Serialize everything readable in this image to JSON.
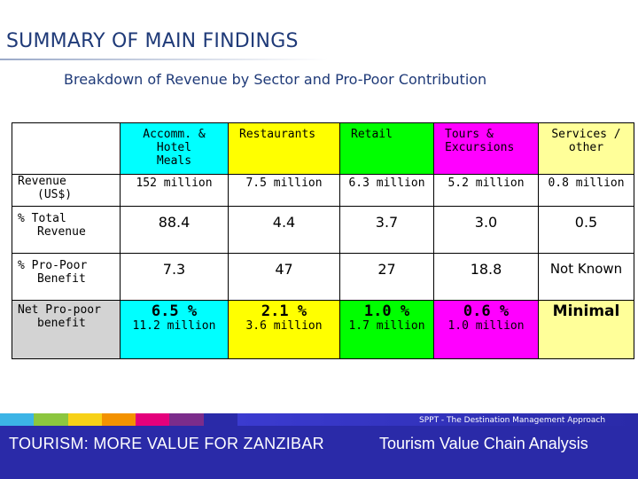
{
  "title": "SUMMARY OF MAIN FINDINGS",
  "subtitle": "Breakdown of Revenue by Sector and Pro-Poor Contribution",
  "table": {
    "headers": [
      {
        "label": "Accomm. &\nHotel\nMeals",
        "color": "#00ffff"
      },
      {
        "label": "Restaurants",
        "color": "#ffff00"
      },
      {
        "label": "Retail",
        "color": "#00ff00"
      },
      {
        "label": "Tours &\nExcursions",
        "color": "#ff00ff"
      },
      {
        "label": "Services /\nother",
        "color": "#ffff99"
      }
    ],
    "rows": [
      {
        "label_1": "Revenue",
        "label_2": "(US$)",
        "values": [
          "152 million",
          "7.5 million",
          "6.3 million",
          "5.2 million",
          "0.8 million"
        ]
      },
      {
        "label_1": "% Total",
        "label_2": "Revenue",
        "values": [
          "88.4",
          "4.4",
          "3.7",
          "3.0",
          "0.5"
        ]
      },
      {
        "label_1": "% Pro-Poor",
        "label_2": "Benefit",
        "values": [
          "7.3",
          "47",
          "27",
          "18.8",
          "Not Known"
        ]
      },
      {
        "label_1": "Net Pro-poor",
        "label_2": "benefit",
        "values": [
          "6.5 %",
          "2.1 %",
          "1.0 %",
          "0.6 %",
          "Minimal"
        ],
        "sub_values": [
          "11.2 million",
          "3.6 million",
          "1.7 million",
          "1.0 million",
          ""
        ]
      }
    ]
  },
  "footer": {
    "source": "SPPT - The Destination Management Approach",
    "left": "TOURISM: MORE VALUE FOR ZANZIBAR",
    "right": "Tourism Value Chain Analysis"
  },
  "colors": {
    "title": "#1f3a78",
    "footer_bg": "#2a2aa8",
    "net_label_bg": "#d3d3d3",
    "stripe_colors": [
      "#3cb4e6",
      "#8cc63f",
      "#f7d117",
      "#f39200",
      "#e4007c",
      "#7b2c8b",
      "#2a2aa8"
    ]
  }
}
